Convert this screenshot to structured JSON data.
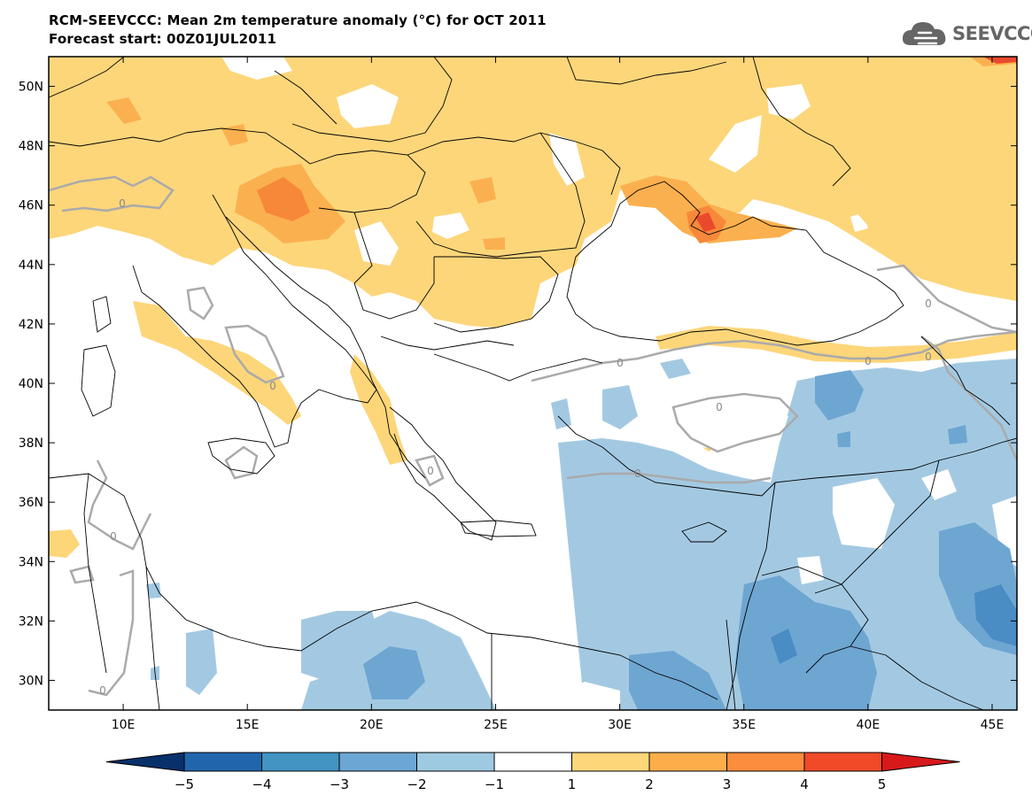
{
  "header": {
    "title": "RCM-SEEVCCC: Mean 2m temperature anomaly (°C) for OCT 2011",
    "subtitle": "Forecast start: 00Z01JUL2011"
  },
  "logo": {
    "text": "SEEVCCC",
    "icon": "cloud-logo-icon"
  },
  "map": {
    "lon_range": [
      7,
      46
    ],
    "lat_range": [
      29,
      51
    ],
    "lat_ticks": [
      "50N",
      "48N",
      "46N",
      "44N",
      "42N",
      "40N",
      "38N",
      "36N",
      "34N",
      "32N",
      "30N"
    ],
    "lat_values": [
      50,
      48,
      46,
      44,
      42,
      40,
      38,
      36,
      34,
      32,
      30
    ],
    "lon_ticks": [
      "10E",
      "15E",
      "20E",
      "25E",
      "30E",
      "35E",
      "40E",
      "45E"
    ],
    "lon_values": [
      10,
      15,
      20,
      25,
      30,
      35,
      40,
      45
    ],
    "contour_label": "0"
  },
  "colorbar": {
    "levels": [
      "−5",
      "−4",
      "−3",
      "−2",
      "−1",
      "1",
      "2",
      "3",
      "4",
      "5"
    ],
    "colors": [
      "#08306b",
      "#2166ac",
      "#4393c3",
      "#6ca6d4",
      "#9ecae1",
      "#ffffff",
      "#fdd67a",
      "#fdae4b",
      "#fc8d3c",
      "#f04a28",
      "#d7191c"
    ]
  },
  "palette": {
    "warm1": "#fdd67a",
    "warm2": "#fbb04f",
    "warm3": "#f7883a",
    "warm4": "#ea4a2c",
    "cool1": "#a3c9e2",
    "cool2": "#6ea6d2",
    "cool3": "#4a8cc4",
    "zero_contour": "#aaaaaa"
  }
}
